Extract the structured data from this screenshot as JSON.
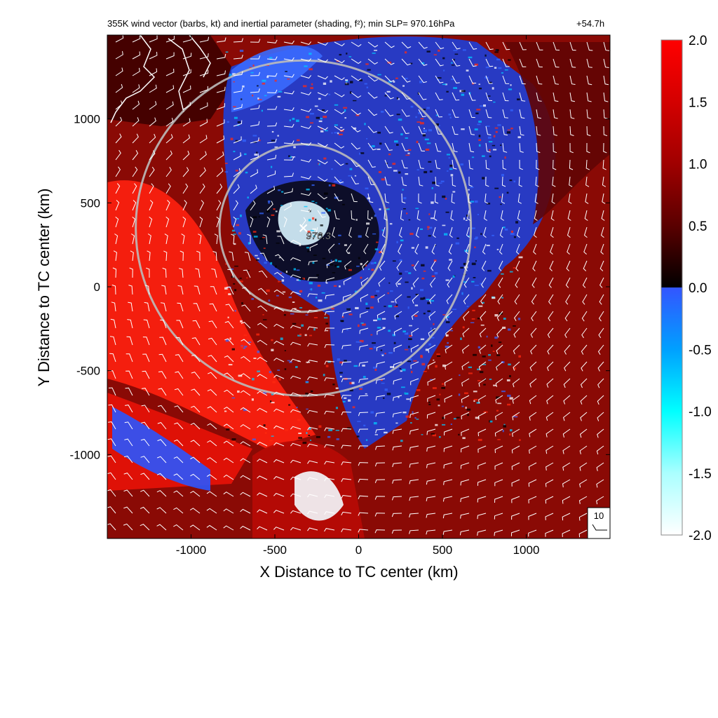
{
  "chart_data": {
    "type": "heatmap",
    "title": "355K wind vector (barbs, kt) and inertial parameter (shading, f²); min SLP= 970.16hPa",
    "time_label": "+54.7h",
    "xlabel": "X Distance to TC center (km)",
    "ylabel": "Y Distance to TC center (km)",
    "xlim": [
      -1500,
      1500
    ],
    "ylim": [
      -1500,
      1500
    ],
    "x_ticks": [
      -1000,
      -500,
      0,
      500,
      1000
    ],
    "y_ticks": [
      -1000,
      -500,
      0,
      500,
      1000
    ],
    "x_tick_labels": [
      "-1000",
      "-500",
      "0",
      "500",
      "1000"
    ],
    "y_tick_labels": [
      "-1000",
      "-500",
      "0",
      "500",
      "1000"
    ],
    "colorbar": {
      "range": [
        -2.0,
        2.0
      ],
      "tick_labels": [
        "2.0",
        "1.5",
        "1.0",
        "0.5",
        "0.0",
        "-0.5",
        "-1.0",
        "-1.5",
        "-2.0"
      ],
      "positive_colors": [
        "#000000",
        "#5a0000",
        "#a00000",
        "#d40000",
        "#ff0000"
      ],
      "negative_colors": [
        "#3355ff",
        "#00a0ff",
        "#00ffff",
        "#aaffff",
        "#ffffff"
      ]
    },
    "center_marker": {
      "x": -330,
      "y": 350,
      "label": "970.3"
    },
    "range_rings": [
      {
        "center": [
          -330,
          350
        ],
        "radius_km": 500,
        "color": "#bbbbbb"
      },
      {
        "center": [
          -330,
          350
        ],
        "radius_km": 1000,
        "color": "#bbbbbb"
      }
    ],
    "reference_vector": {
      "label": "10"
    },
    "grid": false,
    "legend": "colorbar-right"
  }
}
